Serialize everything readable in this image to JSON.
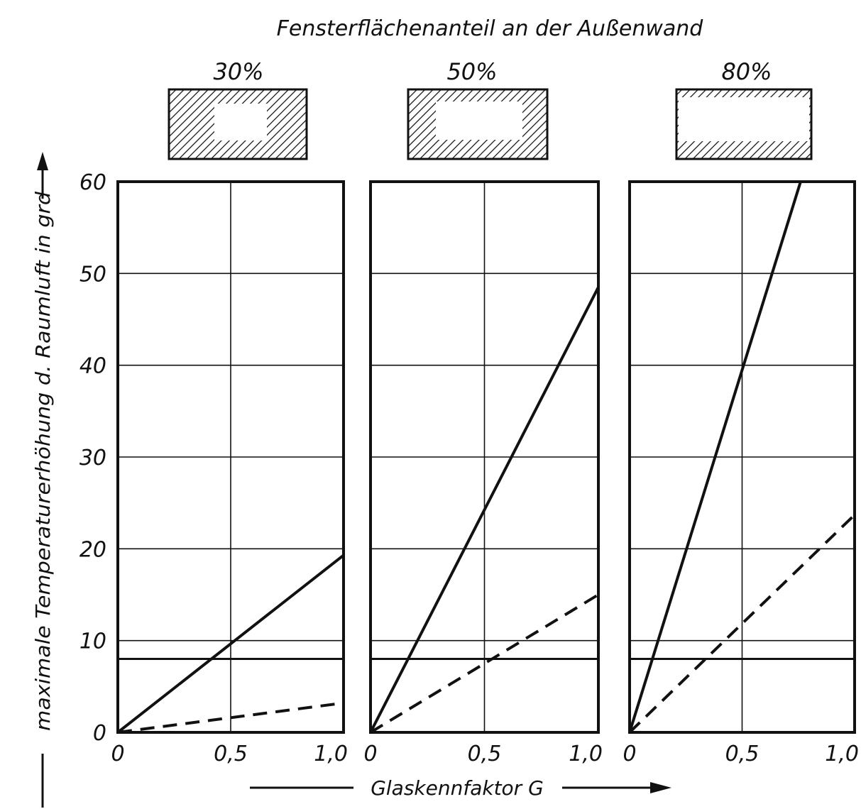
{
  "chart_data": {
    "type": "line",
    "title": "Fensterflächenanteil an der Außenwand",
    "xlabel": "Glaskennfaktor G",
    "ylabel": "maximale Temperaturerhöhung d. Raumluft in grd",
    "y_ticks": [
      "0",
      "10",
      "20",
      "30",
      "40",
      "50",
      "60"
    ],
    "x_ticks": [
      "0",
      "0,5",
      "1,0"
    ],
    "xlim": [
      0,
      1.0
    ],
    "ylim": [
      0,
      60
    ],
    "grid": true,
    "reference_line_y": 8,
    "line_color": "#111111",
    "panels": [
      {
        "label": "30%",
        "series": [
          {
            "style": "solid",
            "x": [
              0,
              1.0
            ],
            "y": [
              0,
              19.3
            ]
          },
          {
            "style": "dashed",
            "x": [
              0,
              1.0
            ],
            "y": [
              0,
              3.2
            ]
          }
        ]
      },
      {
        "label": "50%",
        "series": [
          {
            "style": "solid",
            "x": [
              0,
              1.0
            ],
            "y": [
              0,
              48.5
            ]
          },
          {
            "style": "dashed",
            "x": [
              0,
              1.0
            ],
            "y": [
              0,
              15.0
            ]
          }
        ]
      },
      {
        "label": "80%",
        "series": [
          {
            "style": "solid",
            "x": [
              0,
              0.76
            ],
            "y": [
              0,
              60
            ]
          },
          {
            "style": "dashed",
            "x": [
              0,
              1.0
            ],
            "y": [
              0,
              23.7
            ]
          }
        ]
      }
    ]
  }
}
